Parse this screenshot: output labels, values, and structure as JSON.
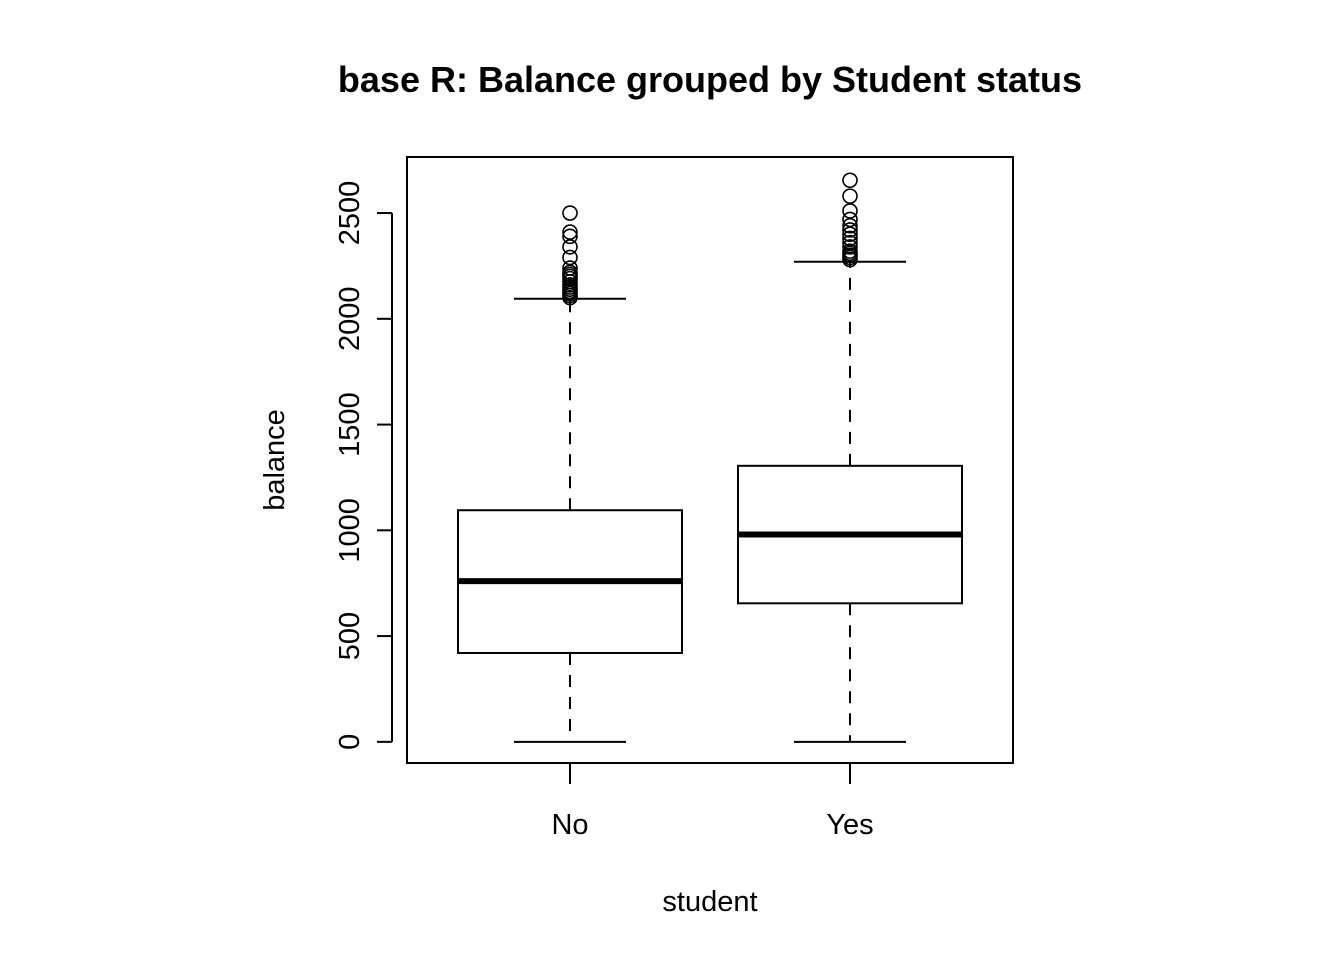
{
  "chart_data": {
    "type": "box",
    "title": "base R: Balance grouped by Student status",
    "xlabel": "student",
    "ylabel": "balance",
    "categories": [
      "No",
      "Yes"
    ],
    "ylim": [
      -100,
      2765
    ],
    "yticks": [
      0,
      500,
      1000,
      1500,
      2000,
      2500
    ],
    "grid": false,
    "legend": "none",
    "boxes": [
      {
        "category": "No",
        "whisker_low": 0,
        "q1": 420,
        "median": 760,
        "q3": 1095,
        "whisker_high": 2095,
        "outliers": [
          2100,
          2110,
          2120,
          2130,
          2140,
          2150,
          2160,
          2175,
          2190,
          2200,
          2210,
          2220,
          2240,
          2290,
          2340,
          2390,
          2410,
          2500
        ]
      },
      {
        "category": "Yes",
        "whisker_low": 0,
        "q1": 655,
        "median": 980,
        "q3": 1305,
        "whisker_high": 2270,
        "outliers": [
          2280,
          2290,
          2300,
          2310,
          2320,
          2340,
          2360,
          2380,
          2400,
          2420,
          2440,
          2470,
          2510,
          2580,
          2655
        ]
      }
    ],
    "colors": {
      "stroke": "#000000",
      "fill": "#ffffff"
    }
  }
}
